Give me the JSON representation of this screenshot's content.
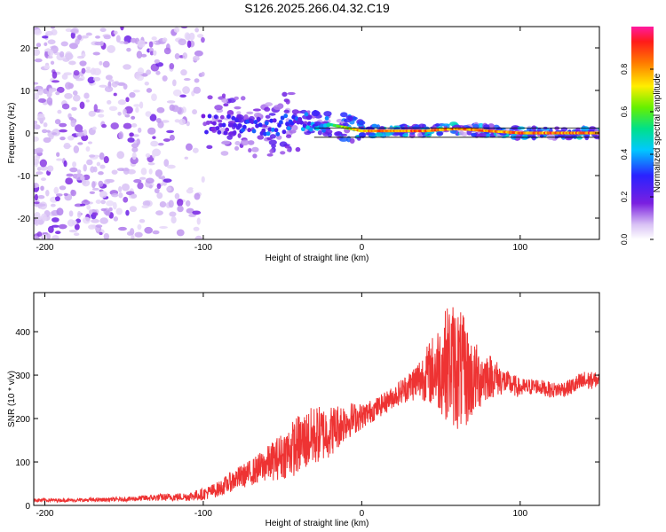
{
  "title": "S126.2025.266.04.32.C19",
  "chart_data": [
    {
      "type": "heatmap",
      "xlabel": "Height of straight line (km)",
      "ylabel": "Frequency (Hz)",
      "xlim": [
        -207,
        150
      ],
      "ylim": [
        -25,
        25
      ],
      "xticks": [
        -200,
        -100,
        0,
        100
      ],
      "yticks": [
        -20,
        -10,
        0,
        10,
        20
      ],
      "colorbar": {
        "label": "Normalized spectral amplitude",
        "range": [
          0.0,
          1.0
        ],
        "ticks": [
          "0.0",
          "0.2",
          "0.4",
          "0.6",
          "0.8"
        ]
      },
      "ridge": {
        "description_points_x": [
          -100,
          -80,
          -60,
          -40,
          -20,
          0,
          20,
          40,
          60,
          80,
          100,
          150
        ],
        "frequency_hz": [
          2,
          2,
          1,
          3,
          2,
          0.5,
          0.5,
          0.5,
          1,
          0.5,
          0,
          0
        ],
        "peak_amplitude": [
          0.25,
          0.3,
          0.35,
          0.35,
          0.55,
          0.85,
          0.9,
          0.9,
          0.9,
          0.9,
          0.9,
          0.9
        ]
      }
    },
    {
      "type": "line",
      "xlabel": "Height of straight line (km)",
      "ylabel": "SNR (10 * v/v)",
      "xlim": [
        -207,
        150
      ],
      "ylim": [
        0,
        490
      ],
      "xticks": [
        -200,
        -100,
        0,
        100
      ],
      "yticks": [
        0,
        100,
        200,
        300,
        400
      ],
      "series": [
        {
          "name": "SNR",
          "color": "#ee3333",
          "x": [
            -207,
            -180,
            -150,
            -130,
            -110,
            -100,
            -90,
            -80,
            -70,
            -60,
            -50,
            -40,
            -30,
            -20,
            -10,
            0,
            10,
            20,
            30,
            40,
            50,
            55,
            60,
            65,
            70,
            80,
            90,
            100,
            110,
            120,
            130,
            140,
            150
          ],
          "values": [
            12,
            12,
            14,
            18,
            20,
            26,
            38,
            60,
            75,
            95,
            115,
            140,
            160,
            170,
            195,
            205,
            225,
            250,
            275,
            300,
            320,
            330,
            320,
            300,
            290,
            300,
            285,
            270,
            275,
            265,
            270,
            285,
            290
          ],
          "amplitude": [
            4,
            4,
            5,
            8,
            10,
            14,
            18,
            25,
            30,
            40,
            55,
            70,
            70,
            60,
            45,
            30,
            25,
            25,
            35,
            60,
            110,
            140,
            150,
            130,
            90,
            55,
            30,
            22,
            18,
            18,
            18,
            25,
            15
          ]
        }
      ]
    }
  ]
}
